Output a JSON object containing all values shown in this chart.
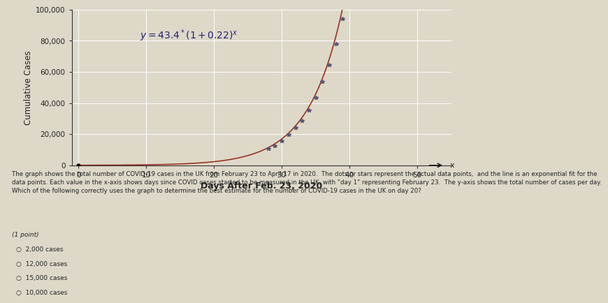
{
  "title": "",
  "xlabel": "Days After Feb. 23, 2020",
  "ylabel": "Cumulative Cases",
  "xlim": [
    -1,
    55
  ],
  "ylim": [
    0,
    100000
  ],
  "yticks": [
    0,
    20000,
    40000,
    60000,
    80000,
    100000
  ],
  "xticks": [
    0,
    10,
    20,
    30,
    40,
    50
  ],
  "equation_display": "$y = 43.4^* (1+0.22)^{x}$",
  "a": 43.4,
  "b": 1.22,
  "data_color": "#555577",
  "line_color": "#993322",
  "background_color": "#ddd8c8",
  "grid_color": "#ffffff",
  "axis_line_color": "#333333",
  "text_color": "#222222",
  "answer_choices": [
    "2,000 cases",
    "12,000 cases",
    "15,000 cases",
    "10,000 cases"
  ],
  "question_label": "(1 point)",
  "desc_line1": "The graph shows the total number of COVID-19 cases in the UK from February 23 to April 17 in 2020.  The dots or stars represent the actual data points,  and the line is an exponential fit for the",
  "desc_line2": "data points. Each value in the x-axis shows days since COVID cases started to be measured in the UK, with \"day 1\" representing February 23.  The y-axis shows the total number of cases per day.",
  "desc_line3": "Which of the following correctly uses the graph to determine the best estimate for the number of COVID-19 cases in the UK on day 20?"
}
